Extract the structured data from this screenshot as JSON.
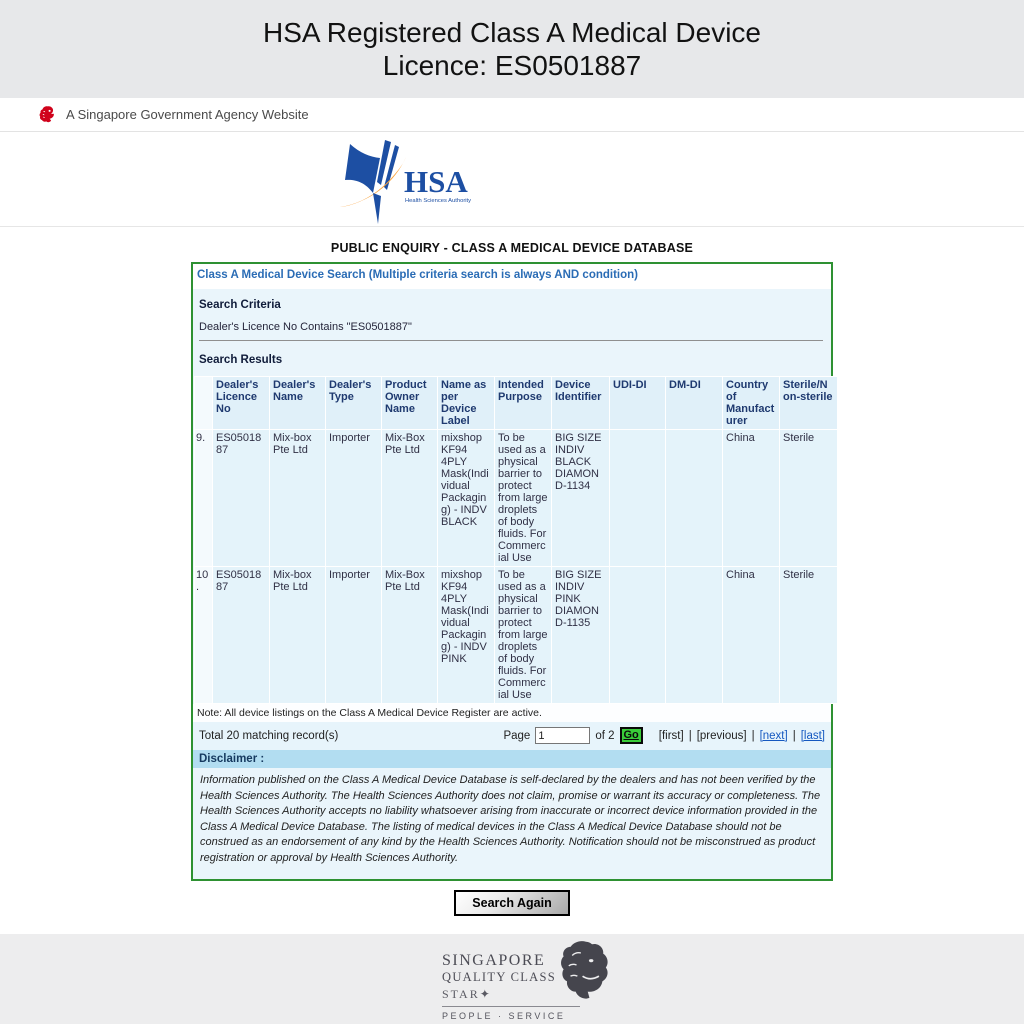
{
  "top_banner": {
    "line1": "HSA Registered Class A Medical Device",
    "line2": "Licence: ES0501887"
  },
  "gov_banner": {
    "text": "A Singapore Government Agency Website"
  },
  "hsa_logo": {
    "text": "HSA",
    "subtext": "Health Sciences Authority"
  },
  "page_title": "PUBLIC ENQUIRY - CLASS A MEDICAL DEVICE DATABASE",
  "panel": {
    "title": "Class A Medical Device Search (Multiple criteria search is always AND condition)",
    "criteria": {
      "heading": "Search Criteria",
      "value": "Dealer's Licence No Contains \"ES0501887\""
    },
    "results_heading": "Search Results",
    "table": {
      "headers": [
        "Dealer's Licence No",
        "Dealer's Name",
        "Dealer's Type",
        "Product Owner Name",
        "Name as per Device Label",
        "Intended Purpose",
        "Device Identifier",
        "UDI-DI",
        "DM-DI",
        "Country of Manufacturer",
        "Sterile/Non-sterile"
      ],
      "rows": [
        {
          "num": "9.",
          "cells": [
            "ES0501887",
            "Mix-box Pte Ltd",
            "Importer",
            "Mix-Box Pte Ltd",
            "mixshop KF94 4PLY Mask(Individual Packaging) - INDV BLACK",
            "To be used as a physical barrier to protect from large droplets of body fluids. For Commercial Use",
            "BIG SIZE INDIV BLACK DIAMOND-1134",
            "",
            "",
            "China",
            "Sterile"
          ]
        },
        {
          "num": "10.",
          "cells": [
            "ES0501887",
            "Mix-box Pte Ltd",
            "Importer",
            "Mix-Box Pte Ltd",
            "mixshop KF94 4PLY Mask(Individual Packaging) - INDV PINK",
            "To be used as a physical barrier to protect from large droplets of body fluids. For Commercial Use",
            "BIG SIZE INDIV PINK DIAMOND-1135",
            "",
            "",
            "China",
            "Sterile"
          ]
        }
      ]
    },
    "note": "Note: All device listings on the Class A Medical Device Register are active.",
    "pagination": {
      "total": "Total 20 matching record(s)",
      "page_label": "Page",
      "page_value": "1",
      "of_label": "of 2",
      "go_label": "Go",
      "first": "[first]",
      "previous": "[previous]",
      "next": "[next]",
      "last": "[last]",
      "sep": "|"
    },
    "disclaimer": {
      "heading": "Disclaimer :",
      "body": "Information published on the Class A Medical Device Database is self-declared by the dealers and has not been verified by the Health Sciences Authority. The Health Sciences Authority does not claim, promise or warrant its accuracy or completeness. The Health Sciences Authority accepts no liability whatsoever arising from inaccurate or incorrect device information provided in the Class A Medical Device Database. The listing of medical devices in the Class A Medical Device Database should not be construed as an endorsement of any kind by the Health Sciences Authority. Notification should not be misconstrued as product registration or approval by Health Sciences Authority."
    }
  },
  "search_again_label": "Search Again",
  "footer": {
    "line1": "SINGAPORE",
    "line2": "QUALITY CLASS",
    "line3": "STAR✦",
    "line4": "PEOPLE · SERVICE"
  },
  "colors": {
    "banner_bg": "#e7e8ea",
    "panel_border_green": "#2e9132",
    "panel_bg_blue": "#eaf5fb",
    "cell_bg": "#e4f3fa",
    "disclaimer_band": "#b2ddf1",
    "go_green": "#39cc39",
    "link_blue": "#1558c0",
    "title_blue": "#2a6cb5",
    "header_navy": "#1f3a70",
    "hsa_blue": "#1d4fa3",
    "hsa_orange": "#f9a13a",
    "merlion_red": "#d0021b"
  }
}
